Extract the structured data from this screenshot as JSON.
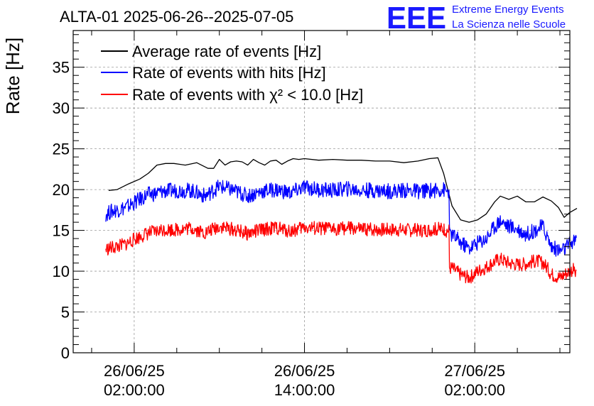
{
  "header": {
    "title": "ALTA-01 2025-06-26--2025-07-05",
    "logo": "EEE",
    "logo_line1": "Extreme Energy Events",
    "logo_line2": "La Scienza nelle Scuole"
  },
  "chart_data": {
    "type": "line",
    "title": "ALTA-01 2025-06-26--2025-07-05",
    "ylabel": "Rate [Hz]",
    "xlabel": "",
    "ylim": [
      0,
      39.5
    ],
    "yticks": [
      0,
      5,
      10,
      15,
      20,
      25,
      30,
      35
    ],
    "xlim": [
      -4.3,
      30.7
    ],
    "x_unit": "hours since 26/06/25 02:00:00",
    "xticks": [
      {
        "x": 0,
        "date": "26/06/25",
        "time": "02:00:00"
      },
      {
        "x": 12,
        "date": "26/06/25",
        "time": "14:00:00"
      },
      {
        "x": 24,
        "date": "27/06/25",
        "time": "02:00:00"
      }
    ],
    "grid": true,
    "legend_position": "top-left",
    "series": [
      {
        "name": "Average rate of events [Hz]",
        "color": "#000000",
        "x": [
          -1.8,
          -1.2,
          -0.4,
          0.4,
          1.0,
          1.6,
          2.2,
          2.8,
          3.6,
          4.4,
          5.2,
          5.6,
          6.0,
          6.4,
          6.8,
          7.2,
          7.6,
          8.0,
          8.4,
          8.8,
          9.2,
          9.6,
          10.0,
          10.4,
          10.8,
          11.2,
          11.6,
          12.0,
          13.0,
          14.0,
          15.0,
          16.0,
          17.0,
          18.0,
          19.0,
          20.0,
          20.8,
          21.4,
          21.8,
          22.4,
          23.0,
          23.6,
          24.2,
          24.8,
          25.4,
          25.8,
          26.4,
          27.0,
          27.6,
          28.2,
          28.8,
          29.4,
          29.9,
          30.3,
          30.7,
          31.2
        ],
        "y": [
          19.9,
          20.0,
          20.7,
          21.3,
          22.0,
          23.0,
          23.2,
          23.2,
          23.0,
          23.3,
          22.6,
          22.6,
          23.7,
          23.0,
          23.4,
          23.5,
          23.4,
          23.0,
          23.7,
          23.3,
          23.0,
          23.5,
          23.6,
          23.1,
          23.5,
          23.8,
          23.7,
          23.8,
          23.6,
          23.7,
          23.6,
          23.6,
          23.5,
          23.5,
          23.3,
          23.5,
          23.8,
          23.9,
          22.0,
          18.0,
          16.3,
          16.0,
          16.3,
          17.0,
          18.5,
          19.2,
          18.8,
          19.2,
          18.5,
          18.5,
          19.1,
          18.6,
          17.8,
          16.6,
          17.2,
          17.7
        ]
      },
      {
        "name": "Rate of events with hits [Hz]",
        "color": "#0000ff",
        "x": [
          -2.0,
          -1.5,
          -1.0,
          -0.5,
          0.0,
          0.5,
          1.0,
          1.5,
          2.0,
          3.0,
          4.0,
          5.0,
          6.0,
          7.0,
          8.0,
          9.0,
          10.0,
          11.0,
          12.0,
          13.0,
          14.0,
          15.0,
          16.0,
          17.0,
          18.0,
          19.0,
          20.0,
          21.0,
          21.8,
          22.0,
          22.4,
          23.0,
          23.6,
          24.2,
          24.8,
          25.4,
          25.8,
          26.4,
          27.0,
          27.6,
          28.2,
          28.8,
          29.4,
          30.0,
          30.4,
          30.8,
          31.2
        ],
        "y": [
          17.0,
          17.4,
          17.6,
          17.9,
          18.4,
          18.9,
          19.4,
          19.5,
          19.8,
          19.9,
          19.9,
          19.2,
          20.4,
          19.9,
          19.2,
          19.8,
          20.0,
          19.6,
          20.3,
          20.0,
          19.9,
          20.1,
          19.9,
          19.9,
          19.8,
          19.9,
          19.8,
          19.9,
          20.0,
          19.8,
          14.5,
          13.5,
          12.8,
          13.5,
          14.0,
          15.5,
          16.2,
          15.5,
          15.2,
          14.5,
          15.0,
          15.5,
          13.0,
          12.5,
          12.8,
          13.5,
          13.8
        ]
      },
      {
        "name": "Rate of events with χ² < 10.0 [Hz]",
        "color": "#ff0000",
        "x": [
          -2.0,
          -1.5,
          -1.0,
          -0.5,
          0.0,
          0.5,
          1.0,
          1.5,
          2.0,
          3.0,
          4.0,
          5.0,
          6.0,
          7.0,
          8.0,
          9.0,
          10.0,
          11.0,
          12.0,
          13.0,
          14.0,
          15.0,
          16.0,
          17.0,
          18.0,
          19.0,
          20.0,
          21.0,
          21.8,
          22.0,
          22.4,
          23.0,
          23.6,
          24.2,
          24.8,
          25.4,
          25.8,
          26.4,
          27.0,
          27.6,
          28.2,
          28.8,
          29.4,
          30.0,
          30.4,
          30.8,
          31.2
        ],
        "y": [
          12.7,
          12.9,
          13.1,
          13.4,
          13.9,
          14.3,
          14.7,
          14.8,
          15.1,
          15.1,
          15.3,
          14.7,
          15.5,
          15.1,
          14.6,
          15.1,
          15.3,
          14.9,
          15.4,
          15.2,
          15.2,
          15.3,
          15.1,
          15.1,
          15.1,
          15.1,
          15.0,
          15.1,
          15.2,
          15.0,
          10.4,
          9.6,
          9.2,
          10.0,
          10.5,
          11.2,
          11.5,
          11.0,
          10.8,
          10.9,
          11.2,
          11.1,
          9.6,
          9.2,
          9.7,
          10.1,
          10.2
        ]
      }
    ]
  }
}
